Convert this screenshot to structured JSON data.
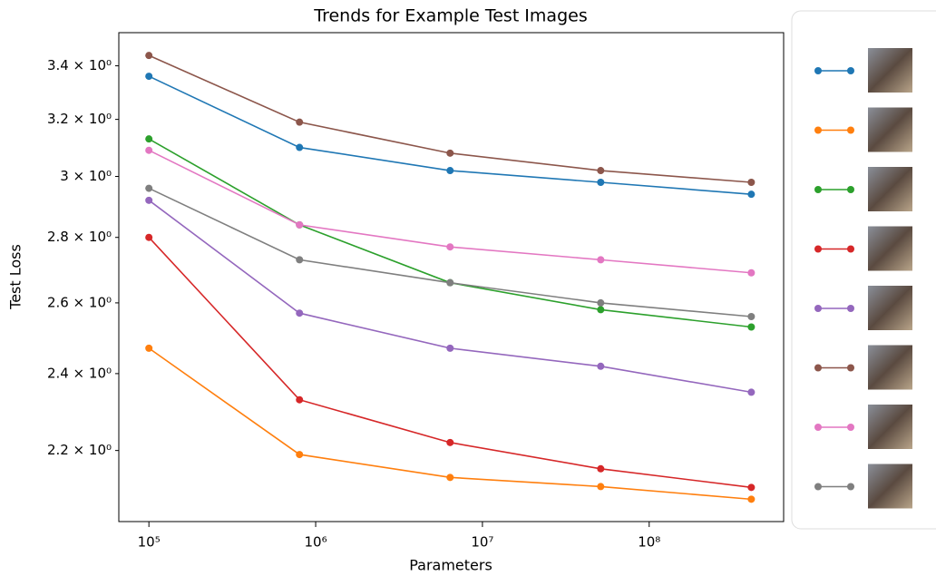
{
  "chart_data": {
    "type": "line",
    "title": "Trends for Example Test Images",
    "x_label": "Parameters",
    "y_label": "Test Loss",
    "x_scale": "log",
    "y_scale": "log",
    "grid": false,
    "legend_position": "right",
    "x": [
      100000,
      800000,
      6400000,
      51200000,
      409600000
    ],
    "xlim": [
      66000,
      640000000
    ],
    "ylim": [
      2.03,
      3.53
    ],
    "xticks": [
      {
        "value": 100000,
        "label": "10⁵"
      },
      {
        "value": 1000000,
        "label": "10⁶"
      },
      {
        "value": 10000000,
        "label": "10⁷"
      },
      {
        "value": 100000000,
        "label": "10⁸"
      }
    ],
    "yticks": [
      {
        "value": 2.2,
        "label": "2.2 × 10⁰"
      },
      {
        "value": 2.4,
        "label": "2.4 × 10⁰"
      },
      {
        "value": 2.6,
        "label": "2.6 × 10⁰"
      },
      {
        "value": 2.8,
        "label": "2.8 × 10⁰"
      },
      {
        "value": 3,
        "label": "3 × 10⁰"
      },
      {
        "value": 3.2,
        "label": "3.2 × 10⁰"
      },
      {
        "value": 3.4,
        "label": "3.4 × 10⁰"
      }
    ],
    "series": [
      {
        "color": "#1f77b4",
        "values": [
          3.36,
          3.1,
          3.02,
          2.98,
          2.94
        ]
      },
      {
        "color": "#ff7f0e",
        "values": [
          2.47,
          2.19,
          2.134,
          2.112,
          2.082
        ]
      },
      {
        "color": "#2ca02c",
        "values": [
          3.13,
          2.84,
          2.66,
          2.58,
          2.53
        ]
      },
      {
        "color": "#d62728",
        "values": [
          2.8,
          2.33,
          2.22,
          2.155,
          2.11
        ]
      },
      {
        "color": "#9467bd",
        "values": [
          2.92,
          2.57,
          2.47,
          2.42,
          2.35
        ]
      },
      {
        "color": "#8c564b",
        "values": [
          3.44,
          3.19,
          3.08,
          3.02,
          2.98
        ]
      },
      {
        "color": "#e377c2",
        "values": [
          3.09,
          2.84,
          2.77,
          2.73,
          2.69
        ]
      },
      {
        "color": "#7f7f7f",
        "values": [
          2.96,
          2.73,
          2.66,
          2.6,
          2.56
        ]
      }
    ]
  }
}
